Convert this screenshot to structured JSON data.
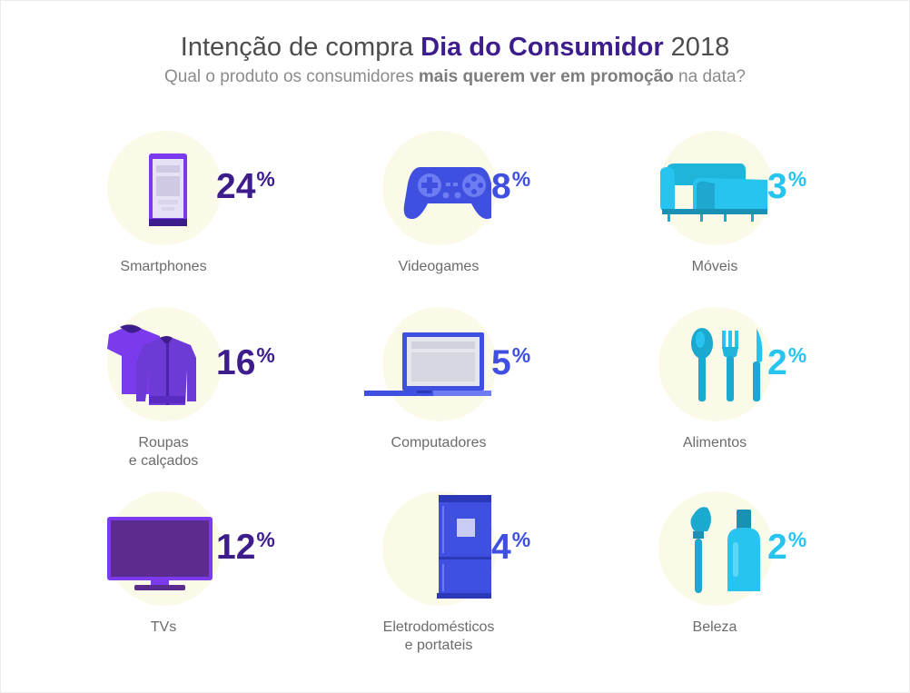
{
  "header": {
    "title_prefix": "Intenção de compra ",
    "title_highlight": "Dia do Consumidor",
    "title_suffix": " 2018",
    "subtitle_prefix": "Qual o produto os consumidores ",
    "subtitle_highlight": "mais querem ver em promoção",
    "subtitle_suffix": " na data?"
  },
  "chart_data": {
    "type": "pictogram",
    "unit": "%",
    "categories": [
      "Smartphones",
      "Videogames",
      "Móveis",
      "Roupas\ne calçados",
      "Computadores",
      "Alimentos",
      "TVs",
      "Eletrodomésticos\ne portateis",
      "Beleza"
    ],
    "values": [
      24,
      8,
      3,
      16,
      5,
      2,
      12,
      4,
      2
    ],
    "colors": [
      "#3d1c8c",
      "#3f4fe0",
      "#27c4f0",
      "#3d1c8c",
      "#3f4fe0",
      "#27c4f0",
      "#3d1c8c",
      "#3f4fe0",
      "#27c4f0"
    ],
    "icons": [
      "smartphone-icon",
      "gamepad-icon",
      "sofa-icon",
      "clothes-icon",
      "laptop-icon",
      "cutlery-icon",
      "tv-icon",
      "fridge-icon",
      "cosmetics-icon"
    ]
  }
}
